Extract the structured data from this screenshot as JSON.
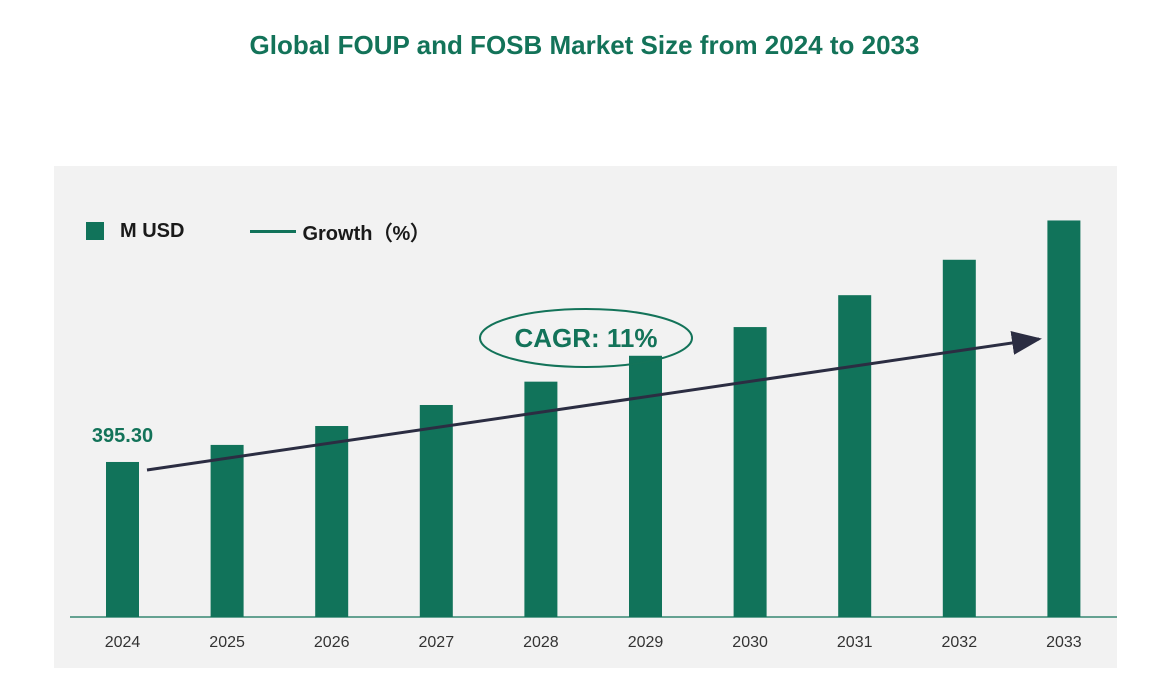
{
  "title": "Global FOUP and FOSB Market Size from 2024 to 2033",
  "colors": {
    "bar": "#11735a",
    "title": "#137359",
    "arrow": "#2b2d42",
    "panel": "#f2f2f2"
  },
  "legend": {
    "bar_label": "M USD",
    "line_label": "Growth（%）"
  },
  "annotation": {
    "cagr": "CAGR: 11%"
  },
  "chart_data": {
    "type": "bar",
    "title": "Global FOUP and FOSB Market Size from 2024 to 2033",
    "xlabel": "",
    "ylabel": "M USD",
    "categories": [
      "2024",
      "2025",
      "2026",
      "2027",
      "2028",
      "2029",
      "2030",
      "2031",
      "2032",
      "2033"
    ],
    "series": [
      {
        "name": "M USD",
        "values": [
          395.3,
          438.8,
          487.0,
          540.6,
          600.1,
          666.1,
          739.3,
          820.6,
          910.9,
          1011.1
        ]
      }
    ],
    "data_labels": [
      {
        "index": 0,
        "text": "395.30"
      }
    ],
    "ylim": [
      0,
      1150
    ],
    "legend": [
      "M USD",
      "Growth（%）"
    ],
    "annotation": "CAGR: 11%",
    "grid": false
  }
}
